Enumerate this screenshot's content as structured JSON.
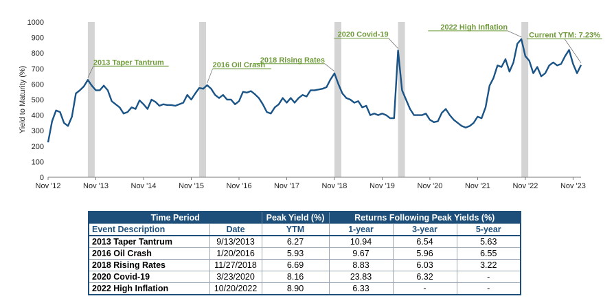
{
  "chart_data": {
    "type": "line",
    "ylabel": "Yield to Maturity (%)",
    "ylim": [
      0,
      1000
    ],
    "yticks": [
      0,
      100,
      200,
      300,
      400,
      500,
      600,
      700,
      800,
      900,
      1000
    ],
    "x_ticks": [
      "Nov '12",
      "Nov '13",
      "Nov '14",
      "Nov '15",
      "Nov '16",
      "Nov '17",
      "Nov '18",
      "Nov '19",
      "Nov '20",
      "Nov '21",
      "Nov '22",
      "Nov '23"
    ],
    "x_range": [
      "2012-11",
      "2024-01"
    ],
    "line_color": "#1a5486",
    "shade_color": "#d4d4d4",
    "label_color": "#6f9a3a",
    "series": [
      {
        "values": [
          [
            "2012-11",
            225
          ],
          [
            "2012-12",
            360
          ],
          [
            "2013-01",
            430
          ],
          [
            "2013-02",
            420
          ],
          [
            "2013-03",
            350
          ],
          [
            "2013-04",
            330
          ],
          [
            "2013-05",
            390
          ],
          [
            "2013-06",
            540
          ],
          [
            "2013-07",
            560
          ],
          [
            "2013-08",
            585
          ],
          [
            "2013-09",
            627
          ],
          [
            "2013-10",
            590
          ],
          [
            "2013-11",
            560
          ],
          [
            "2013-12",
            560
          ],
          [
            "2014-01",
            590
          ],
          [
            "2014-02",
            560
          ],
          [
            "2014-03",
            490
          ],
          [
            "2014-04",
            470
          ],
          [
            "2014-05",
            450
          ],
          [
            "2014-06",
            410
          ],
          [
            "2014-07",
            420
          ],
          [
            "2014-08",
            450
          ],
          [
            "2014-09",
            440
          ],
          [
            "2014-10",
            495
          ],
          [
            "2014-11",
            470
          ],
          [
            "2014-12",
            440
          ],
          [
            "2015-01",
            500
          ],
          [
            "2015-02",
            485
          ],
          [
            "2015-03",
            460
          ],
          [
            "2015-04",
            470
          ],
          [
            "2015-05",
            465
          ],
          [
            "2015-06",
            465
          ],
          [
            "2015-07",
            460
          ],
          [
            "2015-08",
            470
          ],
          [
            "2015-09",
            480
          ],
          [
            "2015-10",
            530
          ],
          [
            "2015-11",
            500
          ],
          [
            "2015-12",
            540
          ],
          [
            "2016-01",
            575
          ],
          [
            "2016-02",
            570
          ],
          [
            "2016-03",
            593
          ],
          [
            "2016-04",
            570
          ],
          [
            "2016-05",
            530
          ],
          [
            "2016-06",
            510
          ],
          [
            "2016-07",
            530
          ],
          [
            "2016-08",
            500
          ],
          [
            "2016-09",
            500
          ],
          [
            "2016-10",
            470
          ],
          [
            "2016-11",
            490
          ],
          [
            "2016-12",
            550
          ],
          [
            "2017-01",
            545
          ],
          [
            "2017-02",
            555
          ],
          [
            "2017-03",
            535
          ],
          [
            "2017-04",
            510
          ],
          [
            "2017-05",
            470
          ],
          [
            "2017-06",
            420
          ],
          [
            "2017-07",
            410
          ],
          [
            "2017-08",
            450
          ],
          [
            "2017-09",
            470
          ],
          [
            "2017-10",
            510
          ],
          [
            "2017-11",
            480
          ],
          [
            "2017-12",
            510
          ],
          [
            "2018-01",
            480
          ],
          [
            "2018-02",
            510
          ],
          [
            "2018-03",
            530
          ],
          [
            "2018-04",
            520
          ],
          [
            "2018-05",
            560
          ],
          [
            "2018-06",
            560
          ],
          [
            "2018-07",
            565
          ],
          [
            "2018-08",
            570
          ],
          [
            "2018-09",
            580
          ],
          [
            "2018-10",
            630
          ],
          [
            "2018-11",
            669
          ],
          [
            "2018-12",
            600
          ],
          [
            "2019-01",
            540
          ],
          [
            "2019-02",
            510
          ],
          [
            "2019-03",
            500
          ],
          [
            "2019-04",
            480
          ],
          [
            "2019-05",
            490
          ],
          [
            "2019-06",
            450
          ],
          [
            "2019-07",
            460
          ],
          [
            "2019-08",
            400
          ],
          [
            "2019-09",
            410
          ],
          [
            "2019-10",
            400
          ],
          [
            "2019-11",
            410
          ],
          [
            "2019-12",
            400
          ],
          [
            "2020-01",
            380
          ],
          [
            "2020-02",
            380
          ],
          [
            "2020-03",
            816
          ],
          [
            "2020-04",
            560
          ],
          [
            "2020-05",
            500
          ],
          [
            "2020-06",
            440
          ],
          [
            "2020-07",
            400
          ],
          [
            "2020-08",
            400
          ],
          [
            "2020-09",
            400
          ],
          [
            "2020-10",
            410
          ],
          [
            "2020-11",
            370
          ],
          [
            "2020-12",
            355
          ],
          [
            "2021-01",
            360
          ],
          [
            "2021-02",
            415
          ],
          [
            "2021-03",
            440
          ],
          [
            "2021-04",
            400
          ],
          [
            "2021-05",
            370
          ],
          [
            "2021-06",
            350
          ],
          [
            "2021-07",
            330
          ],
          [
            "2021-08",
            320
          ],
          [
            "2021-09",
            330
          ],
          [
            "2021-10",
            350
          ],
          [
            "2021-11",
            390
          ],
          [
            "2021-12",
            380
          ],
          [
            "2022-01",
            450
          ],
          [
            "2022-02",
            590
          ],
          [
            "2022-03",
            640
          ],
          [
            "2022-04",
            720
          ],
          [
            "2022-05",
            710
          ],
          [
            "2022-06",
            760
          ],
          [
            "2022-07",
            680
          ],
          [
            "2022-08",
            740
          ],
          [
            "2022-09",
            860
          ],
          [
            "2022-10",
            890
          ],
          [
            "2022-11",
            780
          ],
          [
            "2022-12",
            750
          ],
          [
            "2023-01",
            670
          ],
          [
            "2023-02",
            710
          ],
          [
            "2023-03",
            650
          ],
          [
            "2023-04",
            670
          ],
          [
            "2023-05",
            720
          ],
          [
            "2023-06",
            740
          ],
          [
            "2023-07",
            720
          ],
          [
            "2023-08",
            730
          ],
          [
            "2023-09",
            780
          ],
          [
            "2023-10",
            820
          ],
          [
            "2023-11",
            730
          ],
          [
            "2023-12",
            670
          ],
          [
            "2024-01",
            723
          ]
        ]
      }
    ],
    "shaded_periods": [
      [
        "2013-09",
        "2013-10"
      ],
      [
        "2016-01",
        "2016-02"
      ],
      [
        "2018-11",
        "2018-12"
      ],
      [
        "2020-03",
        "2020-04"
      ],
      [
        "2022-10",
        "2022-11"
      ]
    ],
    "annotations": [
      {
        "text": "2013 Taper Tantrum",
        "x": "2013-09",
        "y": 627
      },
      {
        "text": "2016 Oil Crash",
        "x": "2016-03",
        "y": 593
      },
      {
        "text": "2018 Rising Rates",
        "x": "2018-11",
        "y": 669
      },
      {
        "text": "2020 Covid-19",
        "x": "2020-03",
        "y": 816
      },
      {
        "text": "2022 High Inflation",
        "x": "2022-10",
        "y": 890
      },
      {
        "text": "Current YTM: 7.23%",
        "x": "2024-01",
        "y": 723
      }
    ]
  },
  "table": {
    "header1": [
      "Time Period",
      "Peak Yield (%)",
      "Returns Following Peak Yields (%)"
    ],
    "header2": [
      "Event Description",
      "Date",
      "YTM",
      "1-year",
      "3-year",
      "5-year"
    ],
    "rows": [
      [
        "2013 Taper Tantrum",
        "9/13/2013",
        "6.27",
        "10.94",
        "6.54",
        "5.63"
      ],
      [
        "2016 Oil Crash",
        "1/20/2016",
        "5.93",
        "9.67",
        "5.96",
        "6.55"
      ],
      [
        "2018 Rising Rates",
        "11/27/2018",
        "6.69",
        "8.83",
        "6.03",
        "3.22"
      ],
      [
        "2020 Covid-19",
        "3/23/2020",
        "8.16",
        "23.83",
        "6.32",
        "-"
      ],
      [
        "2022 High Inflation",
        "10/20/2022",
        "8.90",
        "6.33",
        "-",
        "-"
      ]
    ]
  }
}
